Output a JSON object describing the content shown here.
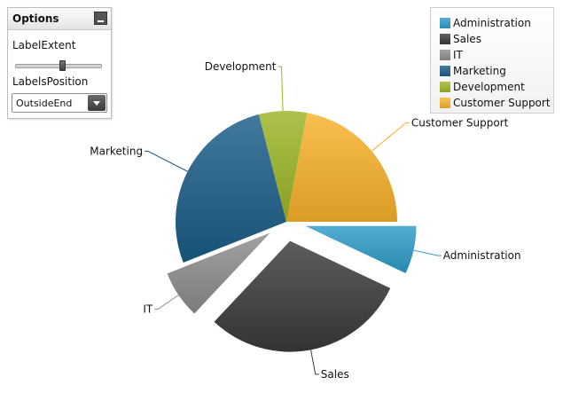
{
  "options_panel": {
    "title": "Options",
    "label_extent_label": "LabelExtent",
    "label_extent_value": 0.55,
    "labels_position_label": "LabelsPosition",
    "labels_position_value": "OutsideEnd"
  },
  "chart_data": {
    "type": "pie",
    "title": "",
    "legend_placement": "top-right",
    "slices": [
      {
        "name": "Administration",
        "value": 7,
        "color": "#2f9ac8",
        "exploded": true
      },
      {
        "name": "Sales",
        "value": 30,
        "color": "#3a3a3a",
        "exploded": true
      },
      {
        "name": "IT",
        "value": 7,
        "color": "#8c8c8c",
        "exploded": true
      },
      {
        "name": "Marketing",
        "value": 27,
        "color": "#195c86",
        "exploded": false
      },
      {
        "name": "Development",
        "value": 7,
        "color": "#9bb524",
        "exploded": false
      },
      {
        "name": "Customer Support",
        "value": 22,
        "color": "#f8b12a",
        "exploded": false
      }
    ]
  }
}
